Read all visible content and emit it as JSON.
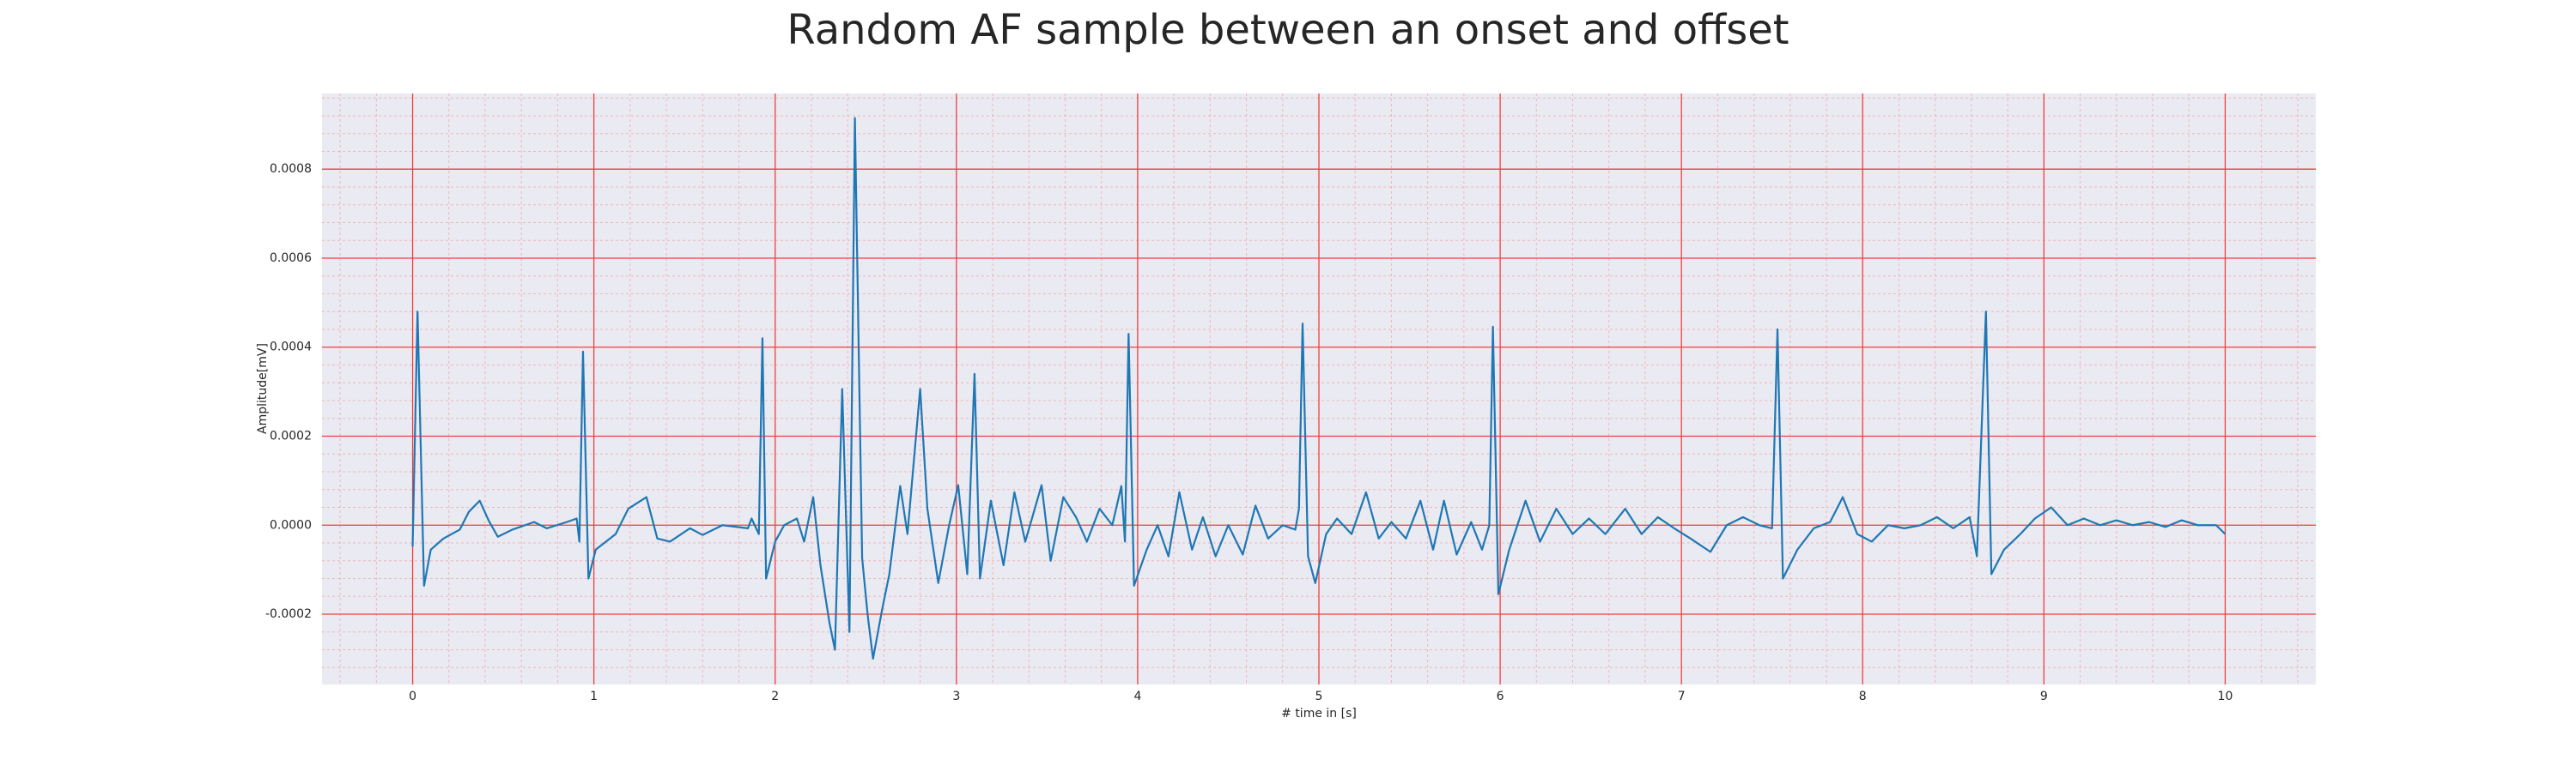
{
  "chart_data": {
    "type": "line",
    "title": "Random AF sample between an onset and offset",
    "xlabel": "# time in [s]",
    "ylabel": "Amplitude[mV]",
    "color": "#1f77b4",
    "grid": true,
    "minor_grid": true,
    "xlim": [
      -0.5,
      10.5
    ],
    "ylim": [
      -0.000358,
      0.00097
    ],
    "xticks": [
      0,
      1,
      2,
      3,
      4,
      5,
      6,
      7,
      8,
      9,
      10
    ],
    "yticks": [
      {
        "value": -0.0002,
        "label": "-0.0002"
      },
      {
        "value": 0,
        "label": "0.0000"
      },
      {
        "value": 0.0002,
        "label": "0.0002"
      },
      {
        "value": 0.0004,
        "label": "0.0004"
      },
      {
        "value": 0.0006,
        "label": "0.0006"
      },
      {
        "value": 0.0008,
        "label": "0.0008"
      }
    ],
    "x": [
      0,
      0.027,
      0.063,
      0.1,
      0.17,
      0.26,
      0.31,
      0.37,
      0.42,
      0.47,
      0.55,
      0.67,
      0.74,
      0.85,
      0.905,
      0.92,
      0.94,
      0.97,
      1.01,
      1.12,
      1.19,
      1.29,
      1.35,
      1.42,
      1.53,
      1.6,
      1.71,
      1.85,
      1.87,
      1.91,
      1.93,
      1.95,
      2.0,
      2.05,
      2.12,
      2.16,
      2.21,
      2.25,
      2.3,
      2.33,
      2.37,
      2.41,
      2.44,
      2.48,
      2.51,
      2.54,
      2.59,
      2.63,
      2.69,
      2.73,
      2.8,
      2.84,
      2.9,
      2.96,
      3.01,
      3.06,
      3.1,
      3.13,
      3.19,
      3.26,
      3.32,
      3.38,
      3.47,
      3.52,
      3.59,
      3.66,
      3.72,
      3.79,
      3.86,
      3.91,
      3.93,
      3.95,
      3.98,
      4.05,
      4.11,
      4.17,
      4.23,
      4.3,
      4.36,
      4.43,
      4.5,
      4.58,
      4.65,
      4.72,
      4.8,
      4.87,
      4.89,
      4.91,
      4.94,
      4.98,
      5.04,
      5.1,
      5.18,
      5.26,
      5.33,
      5.4,
      5.48,
      5.56,
      5.63,
      5.69,
      5.76,
      5.84,
      5.9,
      5.94,
      5.96,
      5.99,
      6.05,
      6.14,
      6.22,
      6.31,
      6.4,
      6.49,
      6.58,
      6.69,
      6.78,
      6.87,
      6.96,
      7.05,
      7.16,
      7.25,
      7.34,
      7.43,
      7.5,
      7.53,
      7.56,
      7.64,
      7.73,
      7.82,
      7.89,
      7.97,
      8.05,
      8.14,
      8.23,
      8.32,
      8.41,
      8.5,
      8.59,
      8.63,
      8.68,
      8.71,
      8.78,
      8.87,
      8.95,
      9.04,
      9.13,
      9.22,
      9.31,
      9.4,
      9.49,
      9.58,
      9.67,
      9.76,
      9.85,
      9.95,
      10.0
    ],
    "values": [
      -4.8e-05,
      0.00048,
      -0.000136,
      -5.5e-05,
      -3e-05,
      -1e-05,
      3e-05,
      5.5e-05,
      1e-05,
      -2.6e-05,
      -1e-05,
      7e-06,
      -7e-06,
      7e-06,
      1.5e-05,
      -3.7e-05,
      0.00039,
      -0.00012,
      -5.5e-05,
      -2e-05,
      3.7e-05,
      6.3e-05,
      -3e-05,
      -3.7e-05,
      -7e-06,
      -2.2e-05,
      0,
      -7e-06,
      1.5e-05,
      -2e-05,
      0.00042,
      -0.00012,
      -3.7e-05,
      0,
      1.5e-05,
      -3.7e-05,
      6.3e-05,
      -9e-05,
      -0.00022,
      -0.00028,
      0.000306,
      -0.00024,
      0.000915,
      -7.4e-05,
      -0.0002,
      -0.0003,
      -0.00019,
      -0.00011,
      8.8e-05,
      -2e-05,
      0.000306,
      3.7e-05,
      -0.00013,
      0,
      9e-05,
      -0.00011,
      0.00034,
      -0.00012,
      5.5e-05,
      -9e-05,
      7.4e-05,
      -3.7e-05,
      9e-05,
      -8e-05,
      6.3e-05,
      1.8e-05,
      -3.7e-05,
      3.7e-05,
      0,
      8.8e-05,
      -3.7e-05,
      0.00043,
      -0.000136,
      -5.5e-05,
      0,
      -7e-05,
      7.4e-05,
      -5.5e-05,
      1.8e-05,
      -7e-05,
      0,
      -6.6e-05,
      4.4e-05,
      -3e-05,
      0,
      -1e-05,
      3.7e-05,
      0.000453,
      -7e-05,
      -0.00013,
      -2e-05,
      1.5e-05,
      -2e-05,
      7.4e-05,
      -3e-05,
      7e-06,
      -3e-05,
      5.5e-05,
      -5.5e-05,
      5.5e-05,
      -6.6e-05,
      7e-06,
      -5.5e-05,
      0,
      0.000446,
      -0.000155,
      -5.5e-05,
      5.5e-05,
      -3.7e-05,
      3.7e-05,
      -2e-05,
      1.5e-05,
      -2e-05,
      3.7e-05,
      -2e-05,
      1.8e-05,
      -7e-06,
      -3e-05,
      -6e-05,
      0,
      1.8e-05,
      0,
      -7e-06,
      0.00044,
      -0.00012,
      -5.5e-05,
      -7e-06,
      7e-06,
      6.3e-05,
      -2e-05,
      -3.7e-05,
      0,
      -7e-06,
      0,
      1.8e-05,
      -7e-06,
      1.8e-05,
      -7e-05,
      0.00048,
      -0.00011,
      -5.5e-05,
      -2e-05,
      1.5e-05,
      4e-05,
      0,
      1.5e-05,
      0,
      1.1e-05,
      0,
      7e-06,
      -4e-06,
      1.1e-05,
      0,
      0,
      -2e-05
    ]
  }
}
